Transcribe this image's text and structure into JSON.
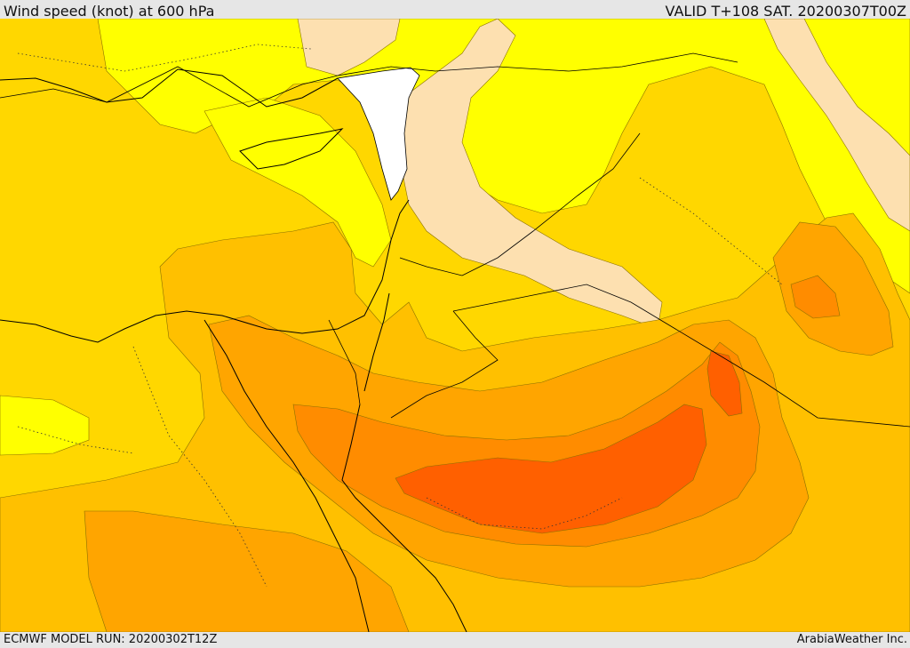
{
  "header": {
    "title": "Wind speed (knot) at 600 hPa",
    "valid": "VALID T+108 SAT. 20200307T00Z"
  },
  "footer": {
    "model_run": "ECMWF MODEL RUN: 20200302T12Z",
    "credit": "ArabiaWeather Inc."
  },
  "colors": {
    "level_1": "#ffffff",
    "level_2": "#fde0b0",
    "level_3": "#ffff00",
    "level_4": "#ffd700",
    "level_5": "#ffc000",
    "level_6": "#ffa500",
    "level_7": "#ff8c00",
    "level_8": "#ff6000"
  },
  "map": {
    "region": "Middle East / Eastern Mediterranean / Red Sea",
    "features": [
      "contour-lines",
      "coastlines",
      "country-borders",
      "dotted-admin-boundaries"
    ]
  }
}
